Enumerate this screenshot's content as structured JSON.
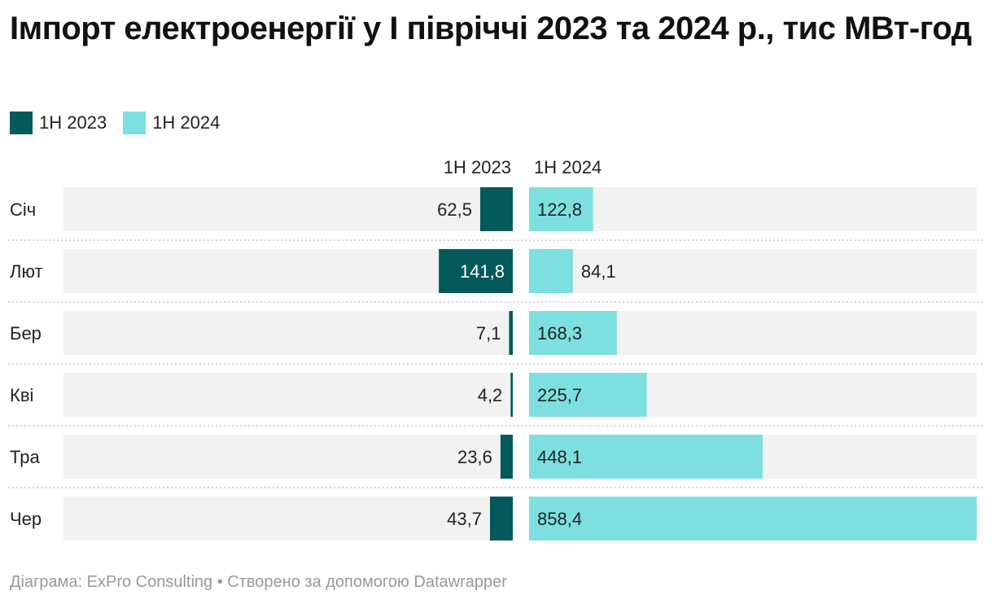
{
  "title": "Імпорт електроенергії у І півріччі 2023 та 2024 р., тис МВт-год",
  "source": "Діаграма: ExPro Consulting • Створено за допомогою Datawrapper",
  "chart_data": {
    "type": "bar",
    "orientation": "horizontal-split",
    "title": "Імпорт електроенергії у І півріччі 2023 та 2024 р., тис МВт-год",
    "categories": [
      "Січ",
      "Лют",
      "Бер",
      "Кві",
      "Тра",
      "Чер"
    ],
    "series": [
      {
        "name": "1H 2023",
        "color": "#045a5a",
        "values": [
          62.5,
          141.8,
          7.1,
          4.2,
          23.6,
          43.7
        ],
        "labels": [
          "62,5",
          "141,8",
          "7,1",
          "4,2",
          "23,6",
          "43,7"
        ]
      },
      {
        "name": "1H 2024",
        "color": "#7ddfdf",
        "values": [
          122.8,
          84.1,
          168.3,
          225.7,
          448.1,
          858.4
        ],
        "labels": [
          "122,8",
          "84,1",
          "168,3",
          "225,7",
          "448,1",
          "858,4"
        ]
      }
    ],
    "legend": "top-left",
    "background_color": "#f2f2f2"
  }
}
